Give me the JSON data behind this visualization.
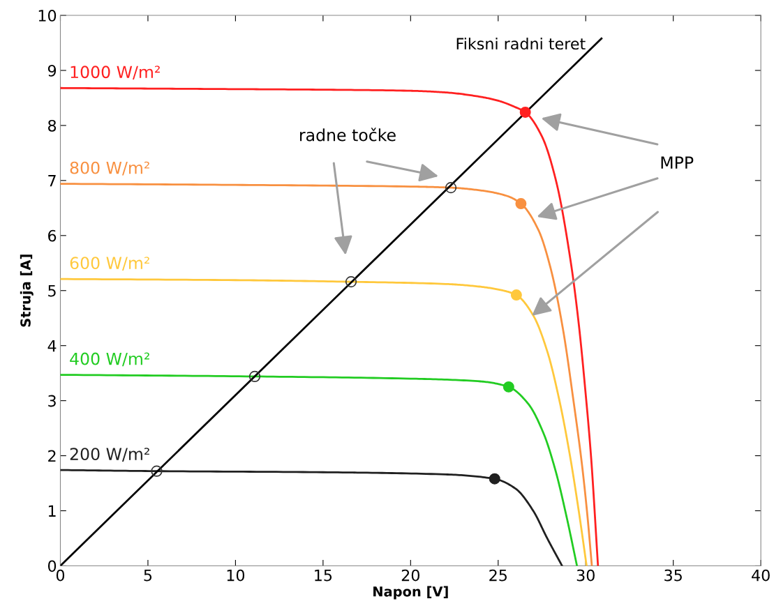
{
  "chart_data": {
    "type": "line",
    "xlabel": "Napon [V]",
    "ylabel": "Struja [A]",
    "xlim": [
      0,
      40
    ],
    "ylim": [
      0,
      10
    ],
    "xticks": [
      0,
      5,
      10,
      15,
      20,
      25,
      30,
      35,
      40
    ],
    "yticks": [
      0,
      1,
      2,
      3,
      4,
      5,
      6,
      7,
      8,
      9,
      10
    ],
    "grid": false,
    "marker": "none",
    "line_style": "solid",
    "series": [
      {
        "name": "1000 W/m²",
        "color": "#ff2020",
        "x": [
          0,
          5,
          10,
          15,
          20,
          22,
          24,
          25,
          26,
          26.55,
          27.5,
          28.3,
          29.15,
          29.6,
          29.98,
          30.3,
          30.7
        ],
        "values": [
          8.68,
          8.67,
          8.66,
          8.65,
          8.63,
          8.6,
          8.52,
          8.45,
          8.33,
          8.24,
          7.8,
          7.0,
          5.51,
          4.4,
          3.18,
          2,
          0
        ]
      },
      {
        "name": "800 W/m²",
        "color": "#f89040",
        "x": [
          0,
          10,
          20,
          22.3,
          24,
          25.5,
          26.3,
          27.3,
          28,
          28.7,
          29.3,
          29.8,
          30.1,
          30.35
        ],
        "values": [
          6.94,
          6.92,
          6.89,
          6.87,
          6.82,
          6.72,
          6.58,
          6.1,
          5.4,
          4.3,
          3,
          1.8,
          0.9,
          0
        ]
      },
      {
        "name": "600 W/m²",
        "color": "#ffc83c",
        "x": [
          0,
          10,
          16.6,
          22,
          24,
          25.3,
          26.04,
          27,
          27.8,
          28.5,
          29.1,
          29.6,
          30.05
        ],
        "values": [
          5.21,
          5.19,
          5.16,
          5.12,
          5.07,
          5.0,
          4.92,
          4.55,
          3.9,
          3.0,
          2.0,
          1.0,
          0
        ]
      },
      {
        "name": "400 W/m²",
        "color": "#22cc22",
        "x": [
          0,
          11.1,
          20,
          24,
          25.6,
          26.7,
          27.6,
          28.3,
          28.9,
          29.5
        ],
        "values": [
          3.47,
          3.44,
          3.4,
          3.35,
          3.25,
          2.95,
          2.4,
          1.7,
          0.9,
          0
        ]
      },
      {
        "name": "200 W/m²",
        "color": "#202020",
        "x": [
          0,
          5.5,
          15,
          22,
          24.8,
          26,
          27,
          27.8,
          28.65
        ],
        "values": [
          1.74,
          1.72,
          1.7,
          1.66,
          1.58,
          1.4,
          1.0,
          0.5,
          0
        ]
      },
      {
        "name": "Fiksni radni teret",
        "color": "#000000",
        "x": [
          0,
          30.9
        ],
        "values": [
          0,
          9.58
        ]
      },
      {
        "type": "scatter",
        "marker": "circle",
        "colors": [
          "#ff2020",
          "#f89040",
          "#ffc83c",
          "#22cc22",
          "#202020"
        ],
        "x": [
          26.55,
          26.3,
          26.04,
          25.6,
          24.8
        ],
        "values": [
          8.24,
          6.58,
          4.92,
          3.25,
          1.58
        ]
      },
      {
        "type": "scatter",
        "marker": "circle",
        "color": "#333333",
        "x": [
          5.5,
          11.1,
          16.6,
          22.3
        ],
        "values": [
          1.72,
          3.44,
          5.16,
          6.87
        ]
      }
    ],
    "annotations": [
      "radne točke",
      "MPP"
    ]
  }
}
